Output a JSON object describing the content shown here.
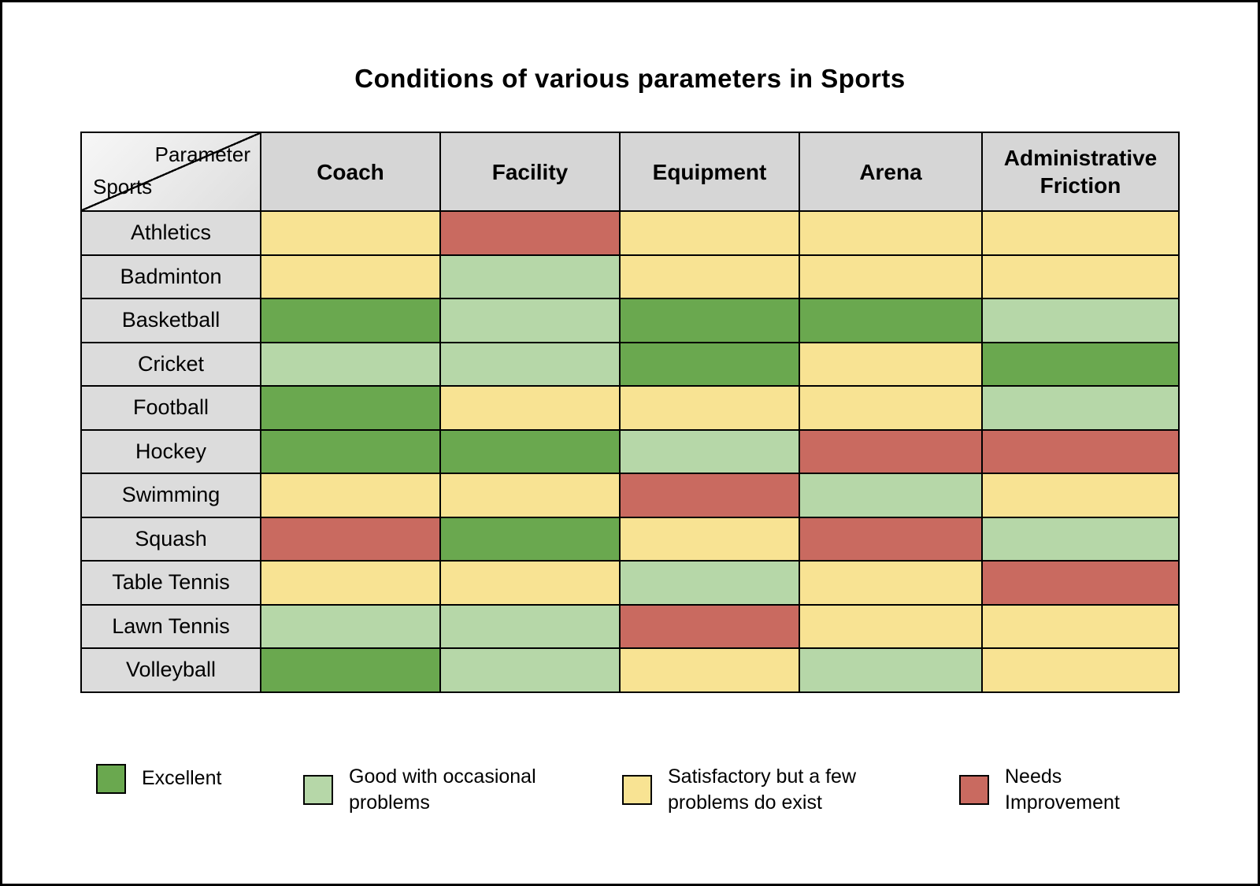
{
  "title": "Conditions of various parameters in Sports",
  "corner": {
    "parameter_label": "Parameter",
    "sports_label": "Sports"
  },
  "chart_data": {
    "type": "heatmap",
    "title": "Conditions of various parameters in Sports",
    "columns": [
      "Coach",
      "Facility",
      "Equipment",
      "Arena",
      "Administrative Friction"
    ],
    "rows": [
      {
        "sport": "Athletics",
        "ratings": [
          "satisfactory",
          "needs_improvement",
          "satisfactory",
          "satisfactory",
          "satisfactory"
        ]
      },
      {
        "sport": "Badminton",
        "ratings": [
          "satisfactory",
          "good",
          "satisfactory",
          "satisfactory",
          "satisfactory"
        ]
      },
      {
        "sport": "Basketball",
        "ratings": [
          "excellent",
          "good",
          "excellent",
          "excellent",
          "good"
        ]
      },
      {
        "sport": "Cricket",
        "ratings": [
          "good",
          "good",
          "excellent",
          "satisfactory",
          "excellent"
        ]
      },
      {
        "sport": "Football",
        "ratings": [
          "excellent",
          "satisfactory",
          "satisfactory",
          "satisfactory",
          "good"
        ]
      },
      {
        "sport": "Hockey",
        "ratings": [
          "excellent",
          "excellent",
          "good",
          "needs_improvement",
          "needs_improvement"
        ]
      },
      {
        "sport": "Swimming",
        "ratings": [
          "satisfactory",
          "satisfactory",
          "needs_improvement",
          "good",
          "satisfactory"
        ]
      },
      {
        "sport": "Squash",
        "ratings": [
          "needs_improvement",
          "excellent",
          "satisfactory",
          "needs_improvement",
          "good"
        ]
      },
      {
        "sport": "Table Tennis",
        "ratings": [
          "satisfactory",
          "satisfactory",
          "good",
          "satisfactory",
          "needs_improvement"
        ]
      },
      {
        "sport": "Lawn Tennis",
        "ratings": [
          "good",
          "good",
          "needs_improvement",
          "satisfactory",
          "satisfactory"
        ]
      },
      {
        "sport": "Volleyball",
        "ratings": [
          "excellent",
          "good",
          "satisfactory",
          "good",
          "satisfactory"
        ]
      }
    ],
    "rating_scale": {
      "excellent": {
        "label": "Excellent",
        "color": "#6aa84f"
      },
      "good": {
        "label": "Good with occasional problems",
        "color": "#b6d7a8"
      },
      "satisfactory": {
        "label": "Satisfactory but a few problems do exist",
        "color": "#f8e393"
      },
      "needs_improvement": {
        "label": "Needs Improvement",
        "color": "#c96a60"
      }
    },
    "legend_order": [
      "excellent",
      "good",
      "satisfactory",
      "needs_improvement"
    ],
    "legend_position": "bottom"
  }
}
